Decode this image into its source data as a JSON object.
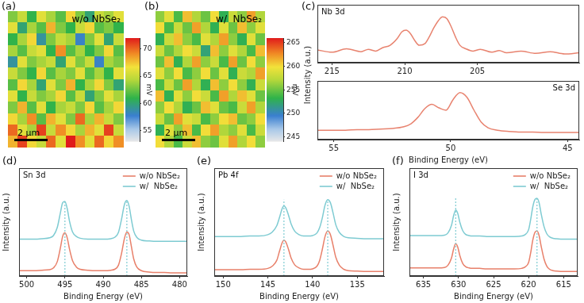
{
  "chart_data": [
    {
      "panel": "(a)",
      "type": "heatmap",
      "label": "w/o NbSe₂",
      "scale_bar": "2 µm",
      "cells": [
        [
          63,
          65,
          61,
          66,
          64,
          62,
          67,
          63,
          60,
          65,
          64,
          66
        ],
        [
          66,
          60,
          64,
          62,
          68,
          63,
          61,
          65,
          67,
          62,
          63,
          61
        ],
        [
          61,
          64,
          67,
          59,
          63,
          65,
          64,
          58,
          63,
          66,
          60,
          65
        ],
        [
          64,
          62,
          65,
          66,
          61,
          69,
          62,
          64,
          61,
          63,
          67,
          62
        ],
        [
          59,
          66,
          63,
          64,
          65,
          60,
          66,
          63,
          65,
          58,
          64,
          63
        ],
        [
          65,
          63,
          61,
          67,
          62,
          64,
          63,
          66,
          62,
          64,
          61,
          66
        ],
        [
          62,
          67,
          64,
          60,
          66,
          63,
          68,
          61,
          64,
          67,
          63,
          60
        ],
        [
          66,
          61,
          65,
          63,
          64,
          67,
          62,
          65,
          60,
          63,
          66,
          64
        ],
        [
          63,
          68,
          62,
          66,
          61,
          64,
          65,
          63,
          67,
          62,
          64,
          67
        ],
        [
          67,
          64,
          69,
          62,
          68,
          66,
          63,
          70,
          64,
          68,
          65,
          63
        ],
        [
          70,
          66,
          64,
          71,
          65,
          69,
          67,
          64,
          68,
          66,
          71,
          65
        ],
        [
          68,
          71,
          67,
          65,
          70,
          66,
          72,
          69,
          66,
          70,
          67,
          69
        ]
      ],
      "colorbar": {
        "range": [
          53,
          72
        ],
        "ticks": [
          55,
          60,
          65,
          70
        ],
        "label": "mV"
      }
    },
    {
      "panel": "(b)",
      "type": "heatmap",
      "label": "w/  NbSe₂",
      "scale_bar": "2 µm",
      "cells": [
        [
          256,
          259,
          254,
          261,
          257,
          255,
          260,
          253,
          258,
          256,
          262,
          257
        ],
        [
          260,
          254,
          258,
          255,
          262,
          257,
          253,
          259,
          255,
          261,
          256,
          259
        ],
        [
          253,
          258,
          261,
          256,
          254,
          259,
          257,
          262,
          256,
          253,
          259,
          255
        ],
        [
          258,
          255,
          257,
          260,
          258,
          252,
          261,
          256,
          259,
          257,
          254,
          261
        ],
        [
          255,
          261,
          253,
          257,
          262,
          256,
          258,
          254,
          262,
          255,
          260,
          256
        ],
        [
          259,
          256,
          260,
          254,
          256,
          260,
          255,
          259,
          253,
          258,
          257,
          262
        ],
        [
          254,
          258,
          255,
          262,
          257,
          253,
          261,
          256,
          260,
          256,
          253,
          258
        ],
        [
          261,
          253,
          259,
          256,
          260,
          258,
          254,
          262,
          257,
          261,
          259,
          255
        ],
        [
          256,
          260,
          257,
          253,
          255,
          261,
          259,
          255,
          254,
          258,
          262,
          257
        ],
        [
          258,
          255,
          262,
          259,
          258,
          254,
          256,
          260,
          261,
          255,
          256,
          260
        ],
        [
          253,
          259,
          256,
          261,
          254,
          260,
          262,
          257,
          256,
          259,
          254,
          258
        ],
        [
          260,
          257,
          254,
          258,
          261,
          256,
          255,
          259,
          262,
          257,
          260,
          256
        ]
      ],
      "colorbar": {
        "range": [
          244,
          266
        ],
        "ticks": [
          245,
          250,
          255,
          260,
          265
        ],
        "label": "mV"
      }
    },
    {
      "panel": "(c)",
      "type": "line",
      "annotation": "Nb 3d",
      "ylabel": "Intensity (a.u.)",
      "xlim": [
        216,
        198
      ],
      "xticks": [
        215,
        210,
        205
      ],
      "ylim": [
        0,
        100
      ],
      "grid": false,
      "tick_labels": "x",
      "x": [
        216,
        215,
        214,
        213,
        212.5,
        212,
        211.5,
        211,
        210.5,
        210.2,
        209.9,
        209.6,
        209.3,
        209,
        208.6,
        208.3,
        208,
        207.7,
        207.4,
        207.1,
        206.8,
        206.5,
        206.2,
        205.8,
        205.3,
        204.8,
        204,
        203.5,
        203,
        202,
        201,
        200,
        199,
        198
      ],
      "series": [
        {
          "color": "#e8836f",
          "values": [
            22,
            18,
            24,
            19,
            23,
            20,
            26,
            30,
            42,
            53,
            56,
            50,
            38,
            30,
            33,
            45,
            60,
            72,
            79,
            76,
            62,
            44,
            30,
            24,
            20,
            23,
            18,
            21,
            17,
            20,
            16,
            19,
            15,
            17
          ]
        }
      ]
    },
    {
      "type": "line",
      "annotation": "Se 3d",
      "xlabel": "Binding Energy (eV)",
      "xlim": [
        55.7,
        44.5
      ],
      "xticks": [
        55,
        50,
        45
      ],
      "ylim": [
        0,
        100
      ],
      "grid": false,
      "tick_labels": "x",
      "x": [
        55.7,
        55,
        54.5,
        54,
        53.5,
        53,
        52.5,
        52,
        51.7,
        51.4,
        51.1,
        50.8,
        50.5,
        50.2,
        49.9,
        49.6,
        49.3,
        49,
        48.7,
        48.4,
        48,
        47.5,
        47,
        46.5,
        46,
        45,
        44.5
      ],
      "series": [
        {
          "color": "#e8836f",
          "values": [
            16,
            16,
            16,
            17,
            17,
            18,
            19,
            22,
            27,
            38,
            53,
            60,
            54,
            50,
            68,
            80,
            72,
            50,
            30,
            20,
            16,
            14,
            13,
            13,
            12,
            12,
            12
          ]
        }
      ]
    },
    {
      "panel": "(d)",
      "type": "line",
      "annotation": "Sn 3d",
      "xlabel": "Binding Energy (eV)",
      "ylabel": "Intensity (a.u.)",
      "xlim": [
        501,
        479
      ],
      "xticks": [
        500,
        495,
        490,
        485,
        480
      ],
      "ylim": [
        0,
        240
      ],
      "grid": false,
      "tick_labels": "x",
      "legend": "upper right",
      "peak_positions": [
        495,
        486.9
      ],
      "x": [
        501,
        500,
        499,
        498,
        497,
        496.5,
        496,
        495.6,
        495.3,
        495,
        494.7,
        494.4,
        494,
        493.5,
        493,
        492,
        491,
        490,
        489,
        488.5,
        488,
        487.6,
        487.2,
        486.9,
        486.6,
        486.3,
        486,
        485.6,
        485,
        484,
        483,
        482,
        481,
        480,
        479
      ],
      "series": [
        {
          "name": "w/o NbSe₂",
          "color": "#e8806a",
          "values": [
            12,
            12,
            12,
            13,
            14,
            18,
            32,
            62,
            88,
            96,
            85,
            60,
            34,
            20,
            15,
            13,
            12,
            12,
            13,
            15,
            24,
            50,
            85,
            98,
            92,
            65,
            38,
            20,
            12,
            9,
            8,
            8,
            7,
            7,
            7
          ]
        },
        {
          "name": "w/  NbSe₂",
          "color": "#7ecbd2",
          "values": [
            82,
            82,
            82,
            83,
            85,
            90,
            108,
            140,
            163,
            166,
            150,
            122,
            98,
            88,
            84,
            82,
            82,
            82,
            83,
            86,
            97,
            126,
            160,
            168,
            155,
            125,
            100,
            86,
            80,
            78,
            77,
            77,
            77,
            77,
            77
          ]
        }
      ]
    },
    {
      "panel": "(e)",
      "type": "line",
      "annotation": "Pb 4f",
      "xlabel": "Binding Energy (eV)",
      "ylabel": "Intensity (a.u.)",
      "xlim": [
        151,
        132
      ],
      "xticks": [
        150,
        145,
        140,
        135
      ],
      "ylim": [
        0,
        240
      ],
      "grid": false,
      "tick_labels": "x",
      "legend": "upper right",
      "peak_positions": [
        143.2,
        138.3
      ],
      "x": [
        151,
        150,
        149,
        148,
        147,
        146,
        145,
        144.5,
        144,
        143.7,
        143.4,
        143.2,
        143,
        142.7,
        142.4,
        142,
        141.5,
        141,
        140.5,
        140,
        139.5,
        139.2,
        138.9,
        138.6,
        138.3,
        138,
        137.7,
        137.4,
        137,
        136.5,
        136,
        135,
        134,
        133,
        132
      ],
      "series": [
        {
          "name": "w/o NbSe₂",
          "color": "#e8806a",
          "values": [
            14,
            14,
            14,
            14,
            15,
            15,
            17,
            22,
            35,
            55,
            74,
            80,
            76,
            60,
            40,
            25,
            18,
            15,
            15,
            16,
            22,
            35,
            60,
            88,
            100,
            92,
            68,
            42,
            24,
            15,
            12,
            11,
            10,
            10,
            10
          ]
        },
        {
          "name": "w/  NbSe₂",
          "color": "#7ecbd2",
          "values": [
            88,
            88,
            88,
            88,
            89,
            89,
            92,
            98,
            112,
            130,
            150,
            156,
            152,
            136,
            116,
            100,
            92,
            89,
            89,
            90,
            96,
            108,
            130,
            158,
            170,
            163,
            140,
            114,
            97,
            88,
            85,
            84,
            83,
            83,
            83
          ]
        }
      ]
    },
    {
      "panel": "(f)",
      "type": "line",
      "annotation": "I 3d",
      "xlabel": "Binding Energy (eV)",
      "ylabel": "Intensity (a.u.)",
      "xlim": [
        637,
        613
      ],
      "xticks": [
        635,
        630,
        625,
        620,
        615
      ],
      "ylim": [
        0,
        240
      ],
      "grid": false,
      "tick_labels": "x",
      "legend": "upper right",
      "peak_positions": [
        630.4,
        618.8
      ],
      "x": [
        637,
        636,
        635,
        634,
        633,
        632,
        631.5,
        631,
        630.7,
        630.4,
        630.1,
        629.8,
        629.4,
        629,
        628.5,
        628,
        627,
        626,
        625,
        624,
        623,
        622,
        621,
        620.5,
        620,
        619.7,
        619.4,
        619.1,
        618.8,
        618.5,
        618.2,
        617.8,
        617.4,
        617,
        616.5,
        616,
        615,
        614,
        613
      ],
      "series": [
        {
          "name": "w/o NbSe₂",
          "color": "#e8806a",
          "values": [
            18,
            18,
            18,
            18,
            18,
            19,
            24,
            40,
            60,
            72,
            64,
            45,
            28,
            21,
            18,
            17,
            17,
            16,
            16,
            16,
            16,
            16,
            17,
            20,
            30,
            52,
            80,
            97,
            100,
            90,
            66,
            38,
            22,
            15,
            12,
            11,
            10,
            10,
            10
          ]
        },
        {
          "name": "w/  NbSe₂",
          "color": "#7ecbd2",
          "values": [
            90,
            90,
            90,
            90,
            90,
            91,
            96,
            113,
            134,
            147,
            139,
            119,
            101,
            93,
            90,
            89,
            89,
            88,
            88,
            88,
            88,
            88,
            89,
            92,
            103,
            126,
            154,
            170,
            173,
            163,
            138,
            110,
            94,
            87,
            84,
            83,
            82,
            82,
            82
          ]
        }
      ]
    }
  ]
}
